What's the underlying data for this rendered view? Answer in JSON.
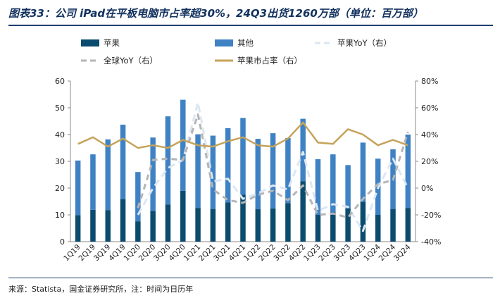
{
  "header": {
    "title": "图表33：公司 iPad在平板电脑市占率超30%，24Q3出货1260万部（单位：百万部）"
  },
  "footer": {
    "source": "来源：Statista，国金证券研究所，注：时间为日历年"
  },
  "colors": {
    "apple": "#0b4b6e",
    "other": "#3f82c4",
    "apple_yoy": "#dbe7f3",
    "global_yoy": "#b5b5b5",
    "share": "#c5a35b",
    "axis": "#888888",
    "title": "#12315e"
  },
  "chart_data": {
    "type": "bar",
    "stacked": true,
    "categories": [
      "1Q19",
      "2Q19",
      "3Q19",
      "4Q19",
      "1Q20",
      "2Q20",
      "3Q20",
      "4Q20",
      "1Q21",
      "2Q21",
      "3Q21",
      "4Q21",
      "1Q22",
      "2Q22",
      "3Q22",
      "4Q22",
      "1Q23",
      "2Q23",
      "3Q23",
      "4Q23",
      "1Q24",
      "2Q24",
      "3Q24"
    ],
    "series": [
      {
        "name": "苹果",
        "kind": "bar",
        "axis": "left",
        "values": [
          9.9,
          11.9,
          11.8,
          15.9,
          7.6,
          11.5,
          13.9,
          19.0,
          12.6,
          12.2,
          14.6,
          17.5,
          12.1,
          12.4,
          14.4,
          22.5,
          10.0,
          11.0,
          12.4,
          14.9,
          10.0,
          12.2,
          12.6
        ]
      },
      {
        "name": "其他",
        "kind": "bar",
        "axis": "left",
        "values": [
          20.4,
          20.7,
          26.4,
          27.8,
          18.4,
          27.4,
          32.9,
          34.0,
          27.5,
          27.4,
          27.8,
          28.7,
          26.3,
          28.1,
          24.3,
          23.4,
          20.8,
          21.6,
          16.2,
          22.1,
          21.0,
          22.3,
          27.4
        ]
      },
      {
        "name": "苹果YoY（右）",
        "kind": "line",
        "axis": "right",
        "style": "dashed",
        "values": [
          null,
          null,
          null,
          null,
          -20,
          0,
          15,
          21,
          64,
          5,
          7,
          -8,
          -4,
          2,
          -1,
          27,
          -17,
          -12,
          -14,
          -32,
          0,
          22,
          0
        ]
      },
      {
        "name": "全球YoY（右）",
        "kind": "line",
        "axis": "right",
        "style": "dashed",
        "values": [
          null,
          null,
          null,
          null,
          -15,
          21,
          22,
          21,
          55,
          -1,
          -9,
          -11,
          -5,
          -2,
          -9,
          2,
          -20,
          -19,
          -22,
          -8,
          3,
          6,
          42
        ]
      },
      {
        "name": "苹果市占率（右）",
        "kind": "line",
        "axis": "right",
        "style": "solid",
        "values": [
          33,
          38,
          31,
          37,
          30,
          32,
          30,
          36,
          32,
          31,
          35,
          38,
          32,
          31,
          37,
          49,
          34,
          33,
          44,
          40,
          32,
          36,
          32
        ]
      }
    ],
    "y_left": {
      "min": 0,
      "max": 60,
      "ticks": [
        "0",
        "10",
        "20",
        "30",
        "40",
        "50",
        "60"
      ]
    },
    "y_right": {
      "min": -40,
      "max": 80,
      "ticks": [
        "-40%",
        "-20%",
        "0%",
        "20%",
        "40%",
        "60%",
        "80%"
      ]
    },
    "legend": {
      "placement": "top"
    }
  }
}
